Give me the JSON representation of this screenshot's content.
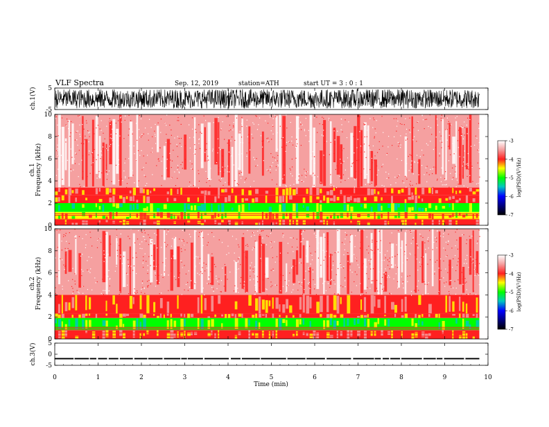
{
  "header": {
    "title": "VLF  Spectra",
    "date": "Sep. 12, 2019",
    "station": "station=ATH",
    "start_ut": "start  UT  =    3  : 0   : 1"
  },
  "chart_data": [
    {
      "type": "line",
      "panel": "ch1-waveform",
      "ylabel": "ch.1(V)",
      "ylim": [
        -5,
        5
      ],
      "yticks": [
        {
          "v": 5,
          "label": "5"
        },
        {
          "v": -5,
          "label": "-5"
        }
      ],
      "xlim": [
        0,
        10
      ],
      "series": [
        {
          "amplitude_range": [
            -4.5,
            4.5
          ],
          "color": "#000000"
        }
      ]
    },
    {
      "type": "heatmap",
      "panel": "ch1-spectrogram",
      "ylabel": "Frequency (kHz)",
      "channel_label": "ch.1",
      "ylim": [
        0,
        10
      ],
      "yticks": [
        {
          "v": 0,
          "label": "0"
        },
        {
          "v": 2,
          "label": "2"
        },
        {
          "v": 4,
          "label": "4"
        },
        {
          "v": 6,
          "label": "6"
        },
        {
          "v": 8,
          "label": "8"
        },
        {
          "v": 10,
          "label": "10"
        }
      ],
      "xlim": [
        0,
        9.8
      ],
      "bands": [
        {
          "from_khz": 3.4,
          "to_khz": 10.0,
          "log_psd": -3.4
        },
        {
          "from_khz": 2.7,
          "to_khz": 3.4,
          "log_psd": -3.9
        },
        {
          "from_khz": 2.0,
          "to_khz": 2.7,
          "log_psd": -4.2
        },
        {
          "from_khz": 1.2,
          "to_khz": 2.0,
          "log_psd": -5.0
        },
        {
          "from_khz": 0.5,
          "to_khz": 1.2,
          "log_psd": -4.4
        },
        {
          "from_khz": 0.0,
          "to_khz": 0.5,
          "log_psd": -4.1
        }
      ],
      "colorbar": {
        "label": "log(PSD)(V²/Hz)",
        "range": [
          -7,
          -3
        ],
        "ticks": [
          "-3",
          "-4",
          "-5",
          "-6",
          "-7"
        ]
      }
    },
    {
      "type": "heatmap",
      "panel": "ch2-spectrogram",
      "ylabel": "Frequency (kHz)",
      "channel_label": "ch.2",
      "ylim": [
        0,
        10
      ],
      "yticks": [
        {
          "v": 0,
          "label": "0"
        },
        {
          "v": 2,
          "label": "2"
        },
        {
          "v": 4,
          "label": "4"
        },
        {
          "v": 6,
          "label": "6"
        },
        {
          "v": 8,
          "label": "8"
        },
        {
          "v": 10,
          "label": "10"
        }
      ],
      "xlim": [
        0,
        9.8
      ],
      "bands": [
        {
          "from_khz": 4.0,
          "to_khz": 10.0,
          "log_psd": -3.4
        },
        {
          "from_khz": 2.3,
          "to_khz": 4.0,
          "log_psd": -3.9
        },
        {
          "from_khz": 1.9,
          "to_khz": 2.3,
          "log_psd": -4.1
        },
        {
          "from_khz": 0.8,
          "to_khz": 1.9,
          "log_psd": -5.0
        },
        {
          "from_khz": 0.0,
          "to_khz": 0.8,
          "log_psd": -4.1
        }
      ],
      "colorbar": {
        "label": "log(PSD)(V²/Hz)",
        "range": [
          -7,
          -3
        ],
        "ticks": [
          "-3",
          "-4",
          "-5",
          "-6",
          "-7"
        ]
      }
    },
    {
      "type": "line",
      "panel": "ch3-waveform",
      "ylabel": "ch.3(V)",
      "ylim": [
        -5,
        5
      ],
      "yticks": [
        {
          "v": 5,
          "label": "5"
        },
        {
          "v": 0,
          "label": "0"
        },
        {
          "v": -5,
          "label": "-5"
        }
      ],
      "xlim": [
        0,
        10
      ],
      "series": [
        {
          "level": -2.0,
          "amplitude_range": [
            -2.3,
            -1.7
          ],
          "color": "#000000"
        }
      ]
    }
  ],
  "x_axis": {
    "label": "Time  (min)",
    "ticks": [
      "0",
      "1",
      "2",
      "3",
      "4",
      "5",
      "6",
      "7",
      "8",
      "9",
      "10"
    ]
  },
  "colors": {
    "psd_minus3": "#ffffff",
    "psd_minus3_5": "#f5a0a0",
    "psd_minus4": "#ff2020",
    "psd_minus4_5": "#ffff00",
    "psd_minus5": "#00ff00",
    "psd_minus5_5": "#00c8c0",
    "psd_minus6": "#0000ff",
    "psd_minus7": "#000000"
  }
}
